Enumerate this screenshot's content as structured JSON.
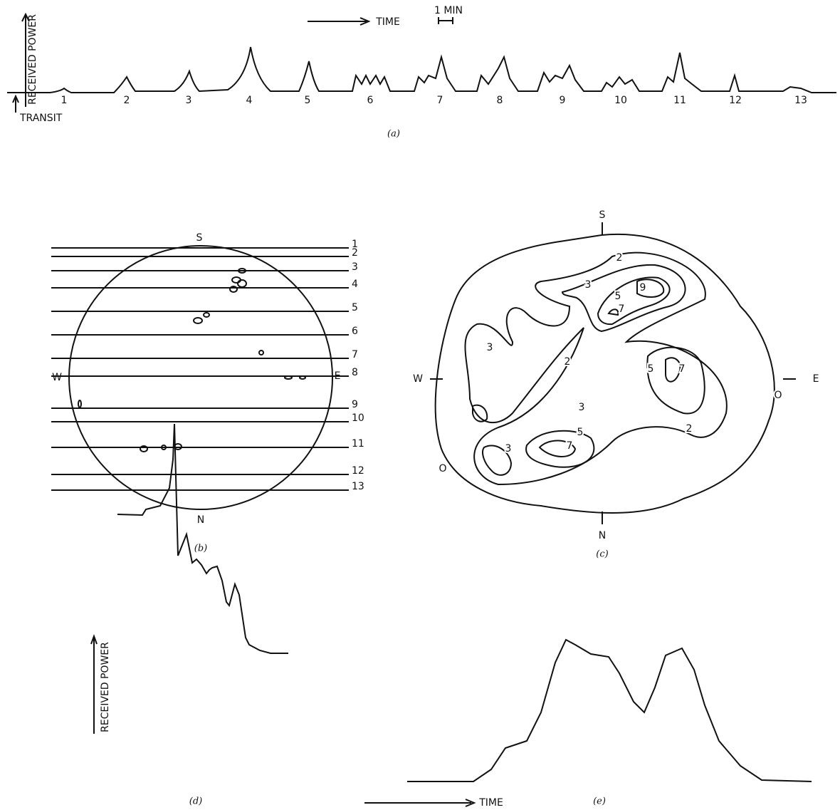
{
  "panel_a": {
    "axis_label": "RECEIVED POWER",
    "time_label": "TIME",
    "scale_label": "1 MIN",
    "transit_label": "TRANSIT",
    "peak_labels": [
      "1",
      "2",
      "3",
      "4",
      "5",
      "6",
      "7",
      "8",
      "9",
      "10",
      "11",
      "12",
      "13"
    ],
    "caption": "(a)"
  },
  "panel_b": {
    "directions": [
      "S",
      "N",
      "W",
      "E"
    ],
    "scan_labels": [
      "1",
      "2",
      "3",
      "4",
      "5",
      "6",
      "7",
      "8",
      "9",
      "10",
      "11",
      "12",
      "13"
    ],
    "caption": "(b)"
  },
  "panel_c": {
    "directions": [
      "S",
      "N",
      "W",
      "E"
    ],
    "contour_labels": [
      "2",
      "3",
      "5",
      "9",
      "7",
      "3",
      "2",
      "5",
      "7",
      "3",
      "5",
      "7",
      "3",
      "2",
      "O",
      "O"
    ],
    "caption": "(c)"
  },
  "panel_d": {
    "axis_label": "RECEIVED POWER",
    "caption": "(d)"
  },
  "panel_e": {
    "time_label": "TIME",
    "caption": "(e)"
  }
}
